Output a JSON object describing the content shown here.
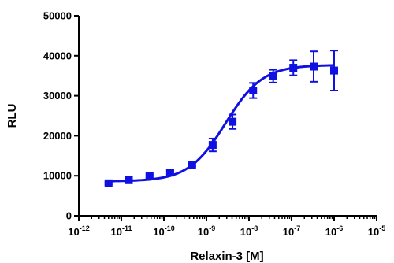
{
  "chart_data": {
    "type": "scatter",
    "xlabel": "Relaxin-3 [M]",
    "ylabel": "RLU",
    "x_scale": "log",
    "xlim": [
      1e-12,
      1e-05
    ],
    "ylim": [
      0,
      50000
    ],
    "y_ticks": [
      0,
      10000,
      20000,
      30000,
      40000,
      50000
    ],
    "y_tick_labels": [
      "0",
      "10000",
      "20000",
      "30000",
      "40000",
      "50000"
    ],
    "x_tick_labels": [
      {
        "base": "10",
        "exp": "-12"
      },
      {
        "base": "10",
        "exp": "-11"
      },
      {
        "base": "10",
        "exp": "-10"
      },
      {
        "base": "10",
        "exp": "-9"
      },
      {
        "base": "10",
        "exp": "-8"
      },
      {
        "base": "10",
        "exp": "-7"
      },
      {
        "base": "10",
        "exp": "-6"
      },
      {
        "base": "10",
        "exp": "-5"
      }
    ],
    "grid": false,
    "color": "#1010e0",
    "series": [
      {
        "x": [
          5e-12,
          1.5e-11,
          4.6e-11,
          1.4e-10,
          4.6e-10,
          1.4e-09,
          4.1e-09,
          1.25e-08,
          3.7e-08,
          1.1e-07,
          3.3e-07,
          1e-06
        ],
        "y": [
          8100,
          8900,
          9900,
          10800,
          12700,
          17700,
          23500,
          31300,
          34900,
          37000,
          37300,
          36300
        ],
        "error": [
          300,
          300,
          400,
          500,
          400,
          1600,
          1800,
          1900,
          1600,
          1900,
          3800,
          5000
        ],
        "fit": {
          "bottom": 8600,
          "top": 37700,
          "log_ec50": -8.55,
          "hill": 1.0
        }
      }
    ]
  }
}
